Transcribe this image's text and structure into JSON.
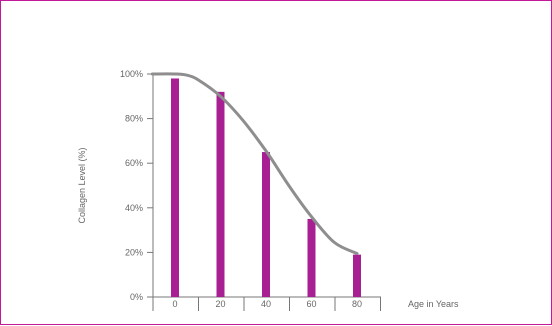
{
  "chart_data": {
    "type": "bar",
    "title": "",
    "xlabel": "Age in Years",
    "ylabel": "Collagen Level (%)",
    "categories": [
      "0",
      "20",
      "40",
      "60",
      "80"
    ],
    "values": [
      98,
      92,
      65,
      35,
      19
    ],
    "curve": {
      "x": [
        -10,
        0,
        5,
        10,
        20,
        30,
        40,
        50,
        60,
        70,
        80
      ],
      "y": [
        100,
        100,
        99.5,
        97.5,
        90,
        79,
        65.5,
        50,
        36,
        24.5,
        19.5
      ]
    },
    "ylim": [
      0,
      100
    ],
    "y_ticks": [
      "0%",
      "20%",
      "40%",
      "60%",
      "80%",
      "100%"
    ],
    "grid": false,
    "legend": "none",
    "colors": {
      "bar": "#a81f94",
      "curve": "#8e8e8e",
      "axis": "#777777",
      "frame": "#c2189a"
    }
  }
}
